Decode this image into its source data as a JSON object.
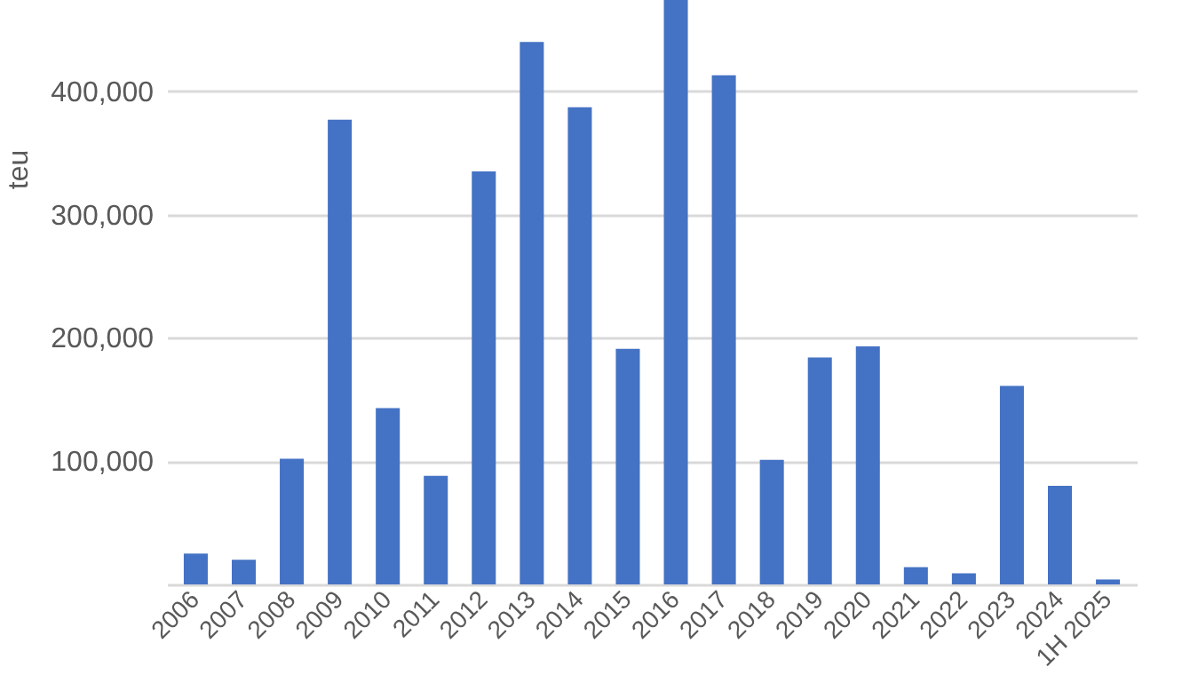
{
  "chart_data": {
    "type": "bar",
    "ylabel": "teu",
    "categories": [
      "2006",
      "2007",
      "2008",
      "2009",
      "2010",
      "2011",
      "2012",
      "2013",
      "2014",
      "2015",
      "2016",
      "2017",
      "2018",
      "2019",
      "2020",
      "2021",
      "2022",
      "2023",
      "2024",
      "1H 2025"
    ],
    "values": [
      25000,
      20000,
      102000,
      377000,
      143000,
      88000,
      335000,
      440000,
      387000,
      191000,
      474000,
      413000,
      101000,
      184000,
      193000,
      14000,
      9000,
      161000,
      80000,
      4000
    ],
    "color": "#4472c4",
    "ylim": [
      0,
      474000
    ],
    "yticks": [
      {
        "value": 100000,
        "label": "100,000"
      },
      {
        "value": 200000,
        "label": "200,000"
      },
      {
        "value": 300000,
        "label": "300,000"
      },
      {
        "value": 400000,
        "label": "400,000"
      }
    ],
    "grid": "y"
  }
}
